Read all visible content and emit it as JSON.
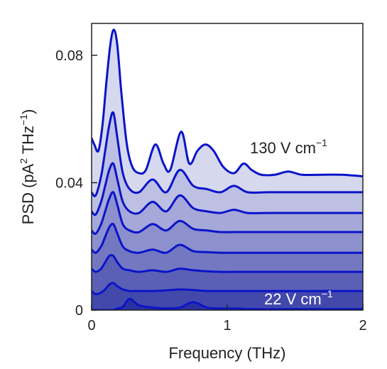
{
  "chart_data": {
    "type": "area",
    "xlabel": "Frequency (THz)",
    "ylabel": {
      "main": "PSD (pA",
      "sup1": "2",
      "mid": " THz",
      "sup2": "−1",
      "end": ")"
    },
    "xlim": [
      0,
      2
    ],
    "ylim": [
      0,
      0.09
    ],
    "x_ticks": [
      {
        "value": 0,
        "label": "0"
      },
      {
        "value": 1,
        "label": "1"
      },
      {
        "value": 2,
        "label": "2"
      }
    ],
    "y_ticks": [
      {
        "value": 0,
        "label": "0"
      },
      {
        "value": 0.04,
        "label": "0.04"
      },
      {
        "value": 0.08,
        "label": "0.08"
      }
    ],
    "annotations": {
      "top": {
        "text": "130 V cm",
        "sup": "−1"
      },
      "bottom": {
        "text": "22 V cm",
        "sup": "−1"
      }
    },
    "colors": {
      "line": "#0a14c8",
      "fill_dark": "#2a30a0",
      "fill_light": "#d6d8ee",
      "bottom_label": "#ffffff",
      "top_label": "#222222"
    },
    "series": [
      {
        "x": [
          0,
          0.03,
          0.07,
          0.1,
          0.13,
          0.16,
          0.19,
          0.23,
          0.28,
          0.35,
          0.45,
          0.55,
          0.65,
          0.75,
          0.85,
          0.95,
          1.05,
          1.2,
          1.4,
          1.6,
          1.8,
          2.0
        ],
        "y": [
          0.0,
          0.0,
          0.0,
          0.0,
          0.0,
          0.0,
          0.0005,
          0.001,
          0.0035,
          0.0015,
          0.0008,
          0.0005,
          0.0008,
          0.0025,
          0.0008,
          0.0005,
          0.0005,
          0.0003,
          0.0003,
          0.0003,
          0.0003,
          0.0003
        ]
      },
      {
        "x": [
          0,
          0.03,
          0.07,
          0.1,
          0.13,
          0.16,
          0.19,
          0.23,
          0.28,
          0.35,
          0.45,
          0.55,
          0.65,
          0.75,
          0.85,
          0.95,
          1.05,
          1.2,
          1.4,
          1.6,
          1.8,
          2.0
        ],
        "y": [
          0.006,
          0.005,
          0.0055,
          0.0065,
          0.008,
          0.0085,
          0.0075,
          0.0065,
          0.006,
          0.006,
          0.006,
          0.0062,
          0.0065,
          0.0063,
          0.006,
          0.006,
          0.006,
          0.006,
          0.006,
          0.006,
          0.006,
          0.006
        ]
      },
      {
        "x": [
          0,
          0.03,
          0.07,
          0.1,
          0.13,
          0.16,
          0.19,
          0.23,
          0.28,
          0.35,
          0.45,
          0.55,
          0.65,
          0.75,
          0.85,
          0.95,
          1.05,
          1.2,
          1.4,
          1.6,
          1.8,
          2.0
        ],
        "y": [
          0.013,
          0.012,
          0.013,
          0.015,
          0.017,
          0.017,
          0.015,
          0.013,
          0.0125,
          0.012,
          0.0125,
          0.012,
          0.013,
          0.0125,
          0.0122,
          0.012,
          0.012,
          0.012,
          0.012,
          0.012,
          0.012,
          0.012
        ]
      },
      {
        "x": [
          0,
          0.03,
          0.07,
          0.1,
          0.13,
          0.16,
          0.19,
          0.23,
          0.28,
          0.35,
          0.45,
          0.55,
          0.65,
          0.75,
          0.85,
          0.95,
          1.05,
          1.2,
          1.4,
          1.6,
          1.8,
          2.0
        ],
        "y": [
          0.019,
          0.018,
          0.02,
          0.023,
          0.026,
          0.027,
          0.024,
          0.02,
          0.0185,
          0.018,
          0.019,
          0.018,
          0.0205,
          0.0185,
          0.0182,
          0.018,
          0.018,
          0.018,
          0.018,
          0.018,
          0.018,
          0.018
        ]
      },
      {
        "x": [
          0,
          0.03,
          0.07,
          0.1,
          0.13,
          0.16,
          0.19,
          0.23,
          0.28,
          0.35,
          0.45,
          0.55,
          0.65,
          0.75,
          0.85,
          0.95,
          1.05,
          1.2,
          1.4,
          1.6,
          1.8,
          2.0
        ],
        "y": [
          0.025,
          0.024,
          0.027,
          0.031,
          0.035,
          0.037,
          0.033,
          0.027,
          0.025,
          0.0245,
          0.027,
          0.025,
          0.028,
          0.0255,
          0.025,
          0.0245,
          0.0245,
          0.0245,
          0.0245,
          0.0245,
          0.0245,
          0.0245
        ]
      },
      {
        "x": [
          0,
          0.03,
          0.07,
          0.1,
          0.13,
          0.16,
          0.19,
          0.23,
          0.28,
          0.35,
          0.45,
          0.55,
          0.65,
          0.75,
          0.85,
          0.95,
          1.05,
          1.15,
          1.3,
          1.5,
          1.7,
          2.0
        ],
        "y": [
          0.031,
          0.03,
          0.034,
          0.039,
          0.044,
          0.046,
          0.041,
          0.034,
          0.031,
          0.0305,
          0.034,
          0.031,
          0.036,
          0.032,
          0.031,
          0.0305,
          0.0315,
          0.0305,
          0.0305,
          0.0305,
          0.0305,
          0.0305
        ]
      },
      {
        "x": [
          0,
          0.03,
          0.07,
          0.1,
          0.13,
          0.16,
          0.19,
          0.23,
          0.28,
          0.35,
          0.45,
          0.55,
          0.65,
          0.75,
          0.85,
          0.95,
          1.05,
          1.15,
          1.3,
          1.5,
          1.7,
          2.0
        ],
        "y": [
          0.037,
          0.036,
          0.042,
          0.05,
          0.058,
          0.062,
          0.054,
          0.043,
          0.038,
          0.037,
          0.041,
          0.037,
          0.044,
          0.039,
          0.038,
          0.037,
          0.039,
          0.037,
          0.037,
          0.037,
          0.037,
          0.037
        ]
      },
      {
        "x": [
          0,
          0.02,
          0.05,
          0.08,
          0.11,
          0.14,
          0.165,
          0.19,
          0.22,
          0.26,
          0.3,
          0.35,
          0.4,
          0.47,
          0.53,
          0.58,
          0.66,
          0.72,
          0.78,
          0.84,
          0.9,
          0.97,
          1.05,
          1.12,
          1.18,
          1.25,
          1.35,
          1.45,
          1.55,
          1.7,
          1.85,
          2.0
        ],
        "y": [
          0.054,
          0.052,
          0.05,
          0.058,
          0.072,
          0.084,
          0.088,
          0.083,
          0.068,
          0.052,
          0.045,
          0.043,
          0.044,
          0.052,
          0.046,
          0.044,
          0.056,
          0.046,
          0.05,
          0.052,
          0.05,
          0.045,
          0.043,
          0.046,
          0.044,
          0.0425,
          0.0425,
          0.0435,
          0.0425,
          0.0425,
          0.0425,
          0.042
        ]
      }
    ]
  }
}
